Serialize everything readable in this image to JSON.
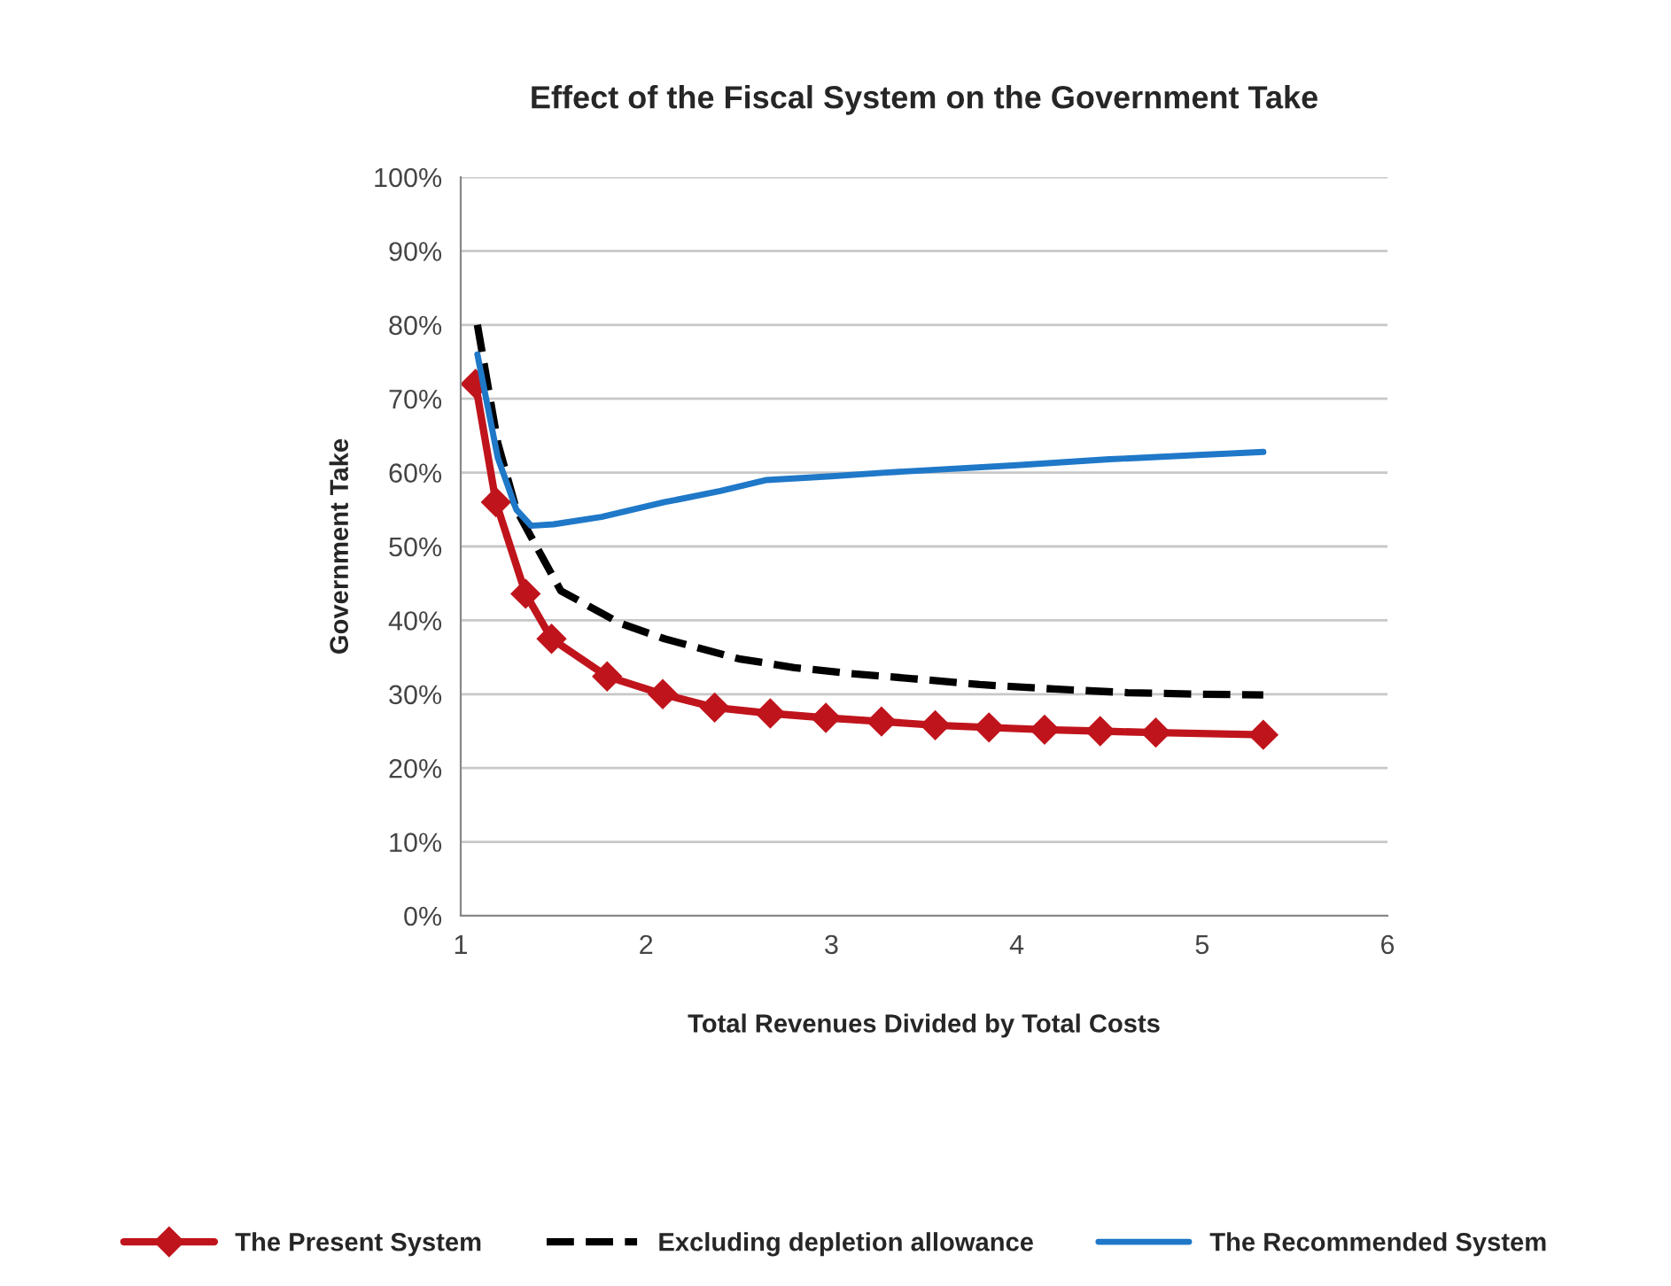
{
  "chart_data": {
    "type": "line",
    "title": "Effect of the Fiscal System on the Government Take",
    "xlabel": "Total Revenues Divided by Total Costs",
    "ylabel": "Government Take",
    "xlim": [
      1,
      6
    ],
    "xticks": [
      1,
      2,
      3,
      4,
      5,
      6
    ],
    "ylim": [
      0,
      100
    ],
    "yticks": [
      {
        "value": 0,
        "label": "0%"
      },
      {
        "value": 10,
        "label": "10%"
      },
      {
        "value": 20,
        "label": "20%"
      },
      {
        "value": 30,
        "label": "30%"
      },
      {
        "value": 40,
        "label": "40%"
      },
      {
        "value": 50,
        "label": "50%"
      },
      {
        "value": 60,
        "label": "60%"
      },
      {
        "value": 70,
        "label": "70%"
      },
      {
        "value": 80,
        "label": "80%"
      },
      {
        "value": 90,
        "label": "90%"
      },
      {
        "value": 100,
        "label": "100%"
      }
    ],
    "grid": "y",
    "legend": "bottom",
    "series": [
      {
        "name": "The Present System",
        "color": "#c0141c",
        "marker": "diamond",
        "line_style": "solid",
        "x": [
          1.08,
          1.19,
          1.35,
          1.49,
          1.79,
          2.09,
          2.37,
          2.67,
          2.97,
          3.27,
          3.56,
          3.85,
          4.15,
          4.45,
          4.75,
          5.33
        ],
        "values": [
          72.0,
          56.0,
          43.6,
          37.5,
          32.4,
          30.0,
          28.2,
          27.4,
          26.8,
          26.3,
          25.8,
          25.5,
          25.2,
          25.0,
          24.8,
          24.5
        ]
      },
      {
        "name": "Excluding depletion allowance",
        "color": "#000000",
        "marker": "none",
        "line_style": "dashed",
        "x": [
          1.09,
          1.2,
          1.3,
          1.38,
          1.54,
          1.86,
          2.1,
          2.5,
          2.8,
          3.1,
          3.44,
          3.8,
          4.2,
          4.6,
          5.0,
          5.33
        ],
        "values": [
          80,
          64,
          55,
          51.3,
          44,
          39.6,
          37.5,
          34.8,
          33.6,
          32.8,
          32.1,
          31.3,
          30.7,
          30.2,
          30.0,
          29.9
        ]
      },
      {
        "name": "The Recommended System",
        "color": "#1f78c8",
        "marker": "none",
        "line_style": "solid",
        "x": [
          1.09,
          1.2,
          1.3,
          1.38,
          1.5,
          1.76,
          2.1,
          2.4,
          2.65,
          3.0,
          3.29,
          3.5,
          4.0,
          4.5,
          5.0,
          5.33
        ],
        "values": [
          76,
          62,
          55,
          52.8,
          53.0,
          54.0,
          56.0,
          57.5,
          59.0,
          59.5,
          60.0,
          60.3,
          61.0,
          61.8,
          62.4,
          62.8
        ]
      }
    ]
  }
}
